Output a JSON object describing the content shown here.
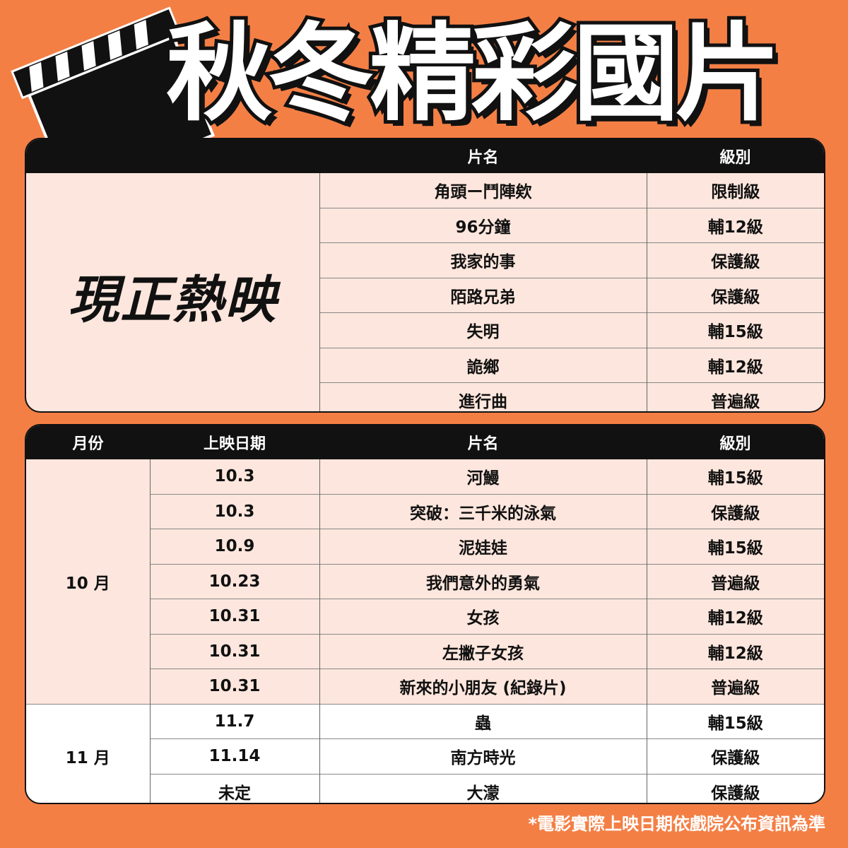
{
  "title": "秋冬精彩國片",
  "colors": {
    "background": "#f47f45",
    "row_bg": "#fde6dd",
    "header_bg": "#111111"
  },
  "now_showing": {
    "label": "現正熱映",
    "headers": {
      "title": "片名",
      "rating": "級別"
    },
    "rows": [
      {
        "title": "角頭ー鬥陣欸",
        "rating": "限制級"
      },
      {
        "title": "96分鐘",
        "rating": "輔12級"
      },
      {
        "title": "我家的事",
        "rating": "保護級"
      },
      {
        "title": "陌路兄弟",
        "rating": "保護級"
      },
      {
        "title": "失明",
        "rating": "輔15級"
      },
      {
        "title": "詭鄉",
        "rating": "輔12級"
      },
      {
        "title": "進行曲",
        "rating": "普遍級"
      }
    ]
  },
  "upcoming": {
    "headers": {
      "month": "月份",
      "date": "上映日期",
      "title": "片名",
      "rating": "級別"
    },
    "months": [
      {
        "label": "10 月",
        "rows": [
          {
            "date": "10.3",
            "title": "河鰻",
            "rating": "輔15級"
          },
          {
            "date": "10.3",
            "title": "突破：三千米的泳氣",
            "rating": "保護級"
          },
          {
            "date": "10.9",
            "title": "泥娃娃",
            "rating": "輔15級"
          },
          {
            "date": "10.23",
            "title": "我們意外的勇氣",
            "rating": "普遍級"
          },
          {
            "date": "10.31",
            "title": "女孩",
            "rating": "輔12級"
          },
          {
            "date": "10.31",
            "title": "左撇子女孩",
            "rating": "輔12級"
          },
          {
            "date": "10.31",
            "title": "新來的小朋友 (紀錄片)",
            "rating": "普遍級"
          }
        ]
      },
      {
        "label": "11 月",
        "rows": [
          {
            "date": "11.7",
            "title": "蟲",
            "rating": "輔15級"
          },
          {
            "date": "11.14",
            "title": "南方時光",
            "rating": "保護級"
          },
          {
            "date": "未定",
            "title": "大濛",
            "rating": "保護級"
          }
        ]
      }
    ]
  },
  "footnote": "*電影實際上映日期依戲院公布資訊為準"
}
